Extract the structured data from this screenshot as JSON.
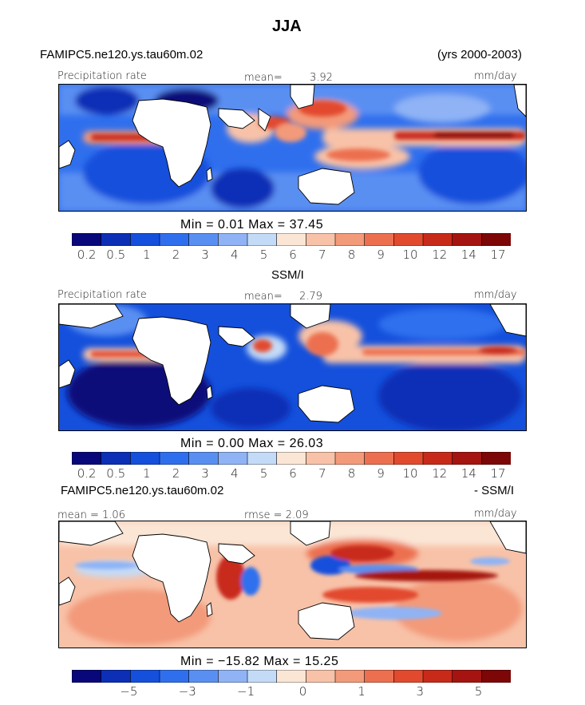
{
  "figure": {
    "title": "JJA",
    "model_name": "FAMIPC5.ne120.ys.tau60m.02",
    "years": "(yrs 2000-2003)"
  },
  "panels": [
    {
      "id": "model",
      "label": "Precipitation rate",
      "mean_label": "mean=",
      "mean_value": "3.92",
      "units": "mm/day",
      "min_max": "Min =    0.01  Max =   37.45"
    },
    {
      "id": "obs",
      "heading": "SSM/I",
      "label": "Precipitation rate",
      "mean_label": "mean=",
      "mean_value": "2.79",
      "units": "mm/day",
      "min_max": "Min =    0.00  Max =   26.03"
    },
    {
      "id": "diff",
      "heading_left": "FAMIPC5.ne120.ys.tau60m.02",
      "heading_right": "- SSM/I",
      "mean_text": "mean =   1.06",
      "rmse_text": "rmse =   2.09",
      "units": "mm/day",
      "min_max": "Min = −15.82  Max =   15.25"
    }
  ],
  "colorbars": {
    "precip": {
      "colors": [
        "#08087a",
        "#0c2fb6",
        "#1450dc",
        "#2f6fee",
        "#5a8ff2",
        "#8fb3f5",
        "#c4dbf7",
        "#fbe6d6",
        "#f8c2a8",
        "#f39a7a",
        "#ec7050",
        "#e24a2e",
        "#c82a1a",
        "#a51410",
        "#7d0606"
      ],
      "ticks": [
        "0.2",
        "0.5",
        "1",
        "2",
        "3",
        "4",
        "5",
        "6",
        "7",
        "8",
        "9",
        "10",
        "12",
        "14",
        "17"
      ]
    },
    "diff": {
      "colors": [
        "#08087a",
        "#0c2fb6",
        "#1450dc",
        "#2f6fee",
        "#5a8ff2",
        "#8fb3f5",
        "#c4dbf7",
        "#fbe6d6",
        "#f8c2a8",
        "#f39a7a",
        "#ec7050",
        "#e24a2e",
        "#c82a1a",
        "#a51410",
        "#7d0606"
      ],
      "ticks": [
        "−5",
        "−3",
        "−1",
        "0",
        "1",
        "3",
        "5"
      ]
    }
  }
}
